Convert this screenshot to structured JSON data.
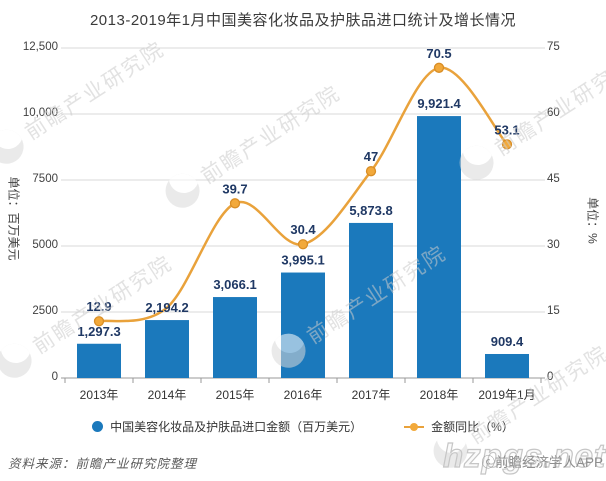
{
  "title": "2013-2019年1月中国美容化妆品及护肤品进口统计及增长情况",
  "axes": {
    "y_left": {
      "label": "单位：百万美元",
      "ticks": [
        "12,500",
        "10,000",
        "7500",
        "5000",
        "2500",
        "0"
      ]
    },
    "y_right": {
      "label": "单位：%",
      "ticks": [
        "75",
        "60",
        "45",
        "30",
        "15",
        "0"
      ]
    }
  },
  "chart_data": {
    "type": "bar+line",
    "categories": [
      "2013年",
      "2014年",
      "2015年",
      "2016年",
      "2017年",
      "2018年",
      "2019年1月"
    ],
    "series": [
      {
        "name": "中国美容化妆品及护肤品进口金额（百万美元）",
        "type": "bar",
        "axis": "left",
        "color": "#1b79bc",
        "values": [
          1297.3,
          2194.2,
          3066.1,
          3995.1,
          5873.8,
          9921.4,
          909.4
        ],
        "labels": [
          "1,297.3",
          "2,194.2",
          "3,066.1",
          "3,995.1",
          "5,873.8",
          "9,921.4",
          "909.4"
        ]
      },
      {
        "name": "金额同比（%）",
        "type": "line",
        "axis": "right",
        "color": "#e9a23b",
        "marker_fill": "#f2a93b",
        "marker_stroke": "#d98e26",
        "values": [
          12.9,
          16,
          39.7,
          30.4,
          47,
          70.5,
          53.1
        ],
        "labels": [
          "12.9",
          "",
          "39.7",
          "30.4",
          "47",
          "70.5",
          "53.1"
        ]
      }
    ],
    "ylim_left": [
      0,
      12500
    ],
    "ylim_right": [
      0,
      75
    ],
    "grid": true,
    "legend_position": "bottom",
    "label_color": "#1f3864",
    "grid_color": "#d9d9d9",
    "axis_color": "#999999"
  },
  "watermark": {
    "text": "前瞻产业研究院"
  },
  "footer": {
    "source": "资料来源：前瞻产业研究院整理",
    "brand": "ⓒ前瞻经济学人APP",
    "outline_watermark": "hzpgs.net"
  }
}
